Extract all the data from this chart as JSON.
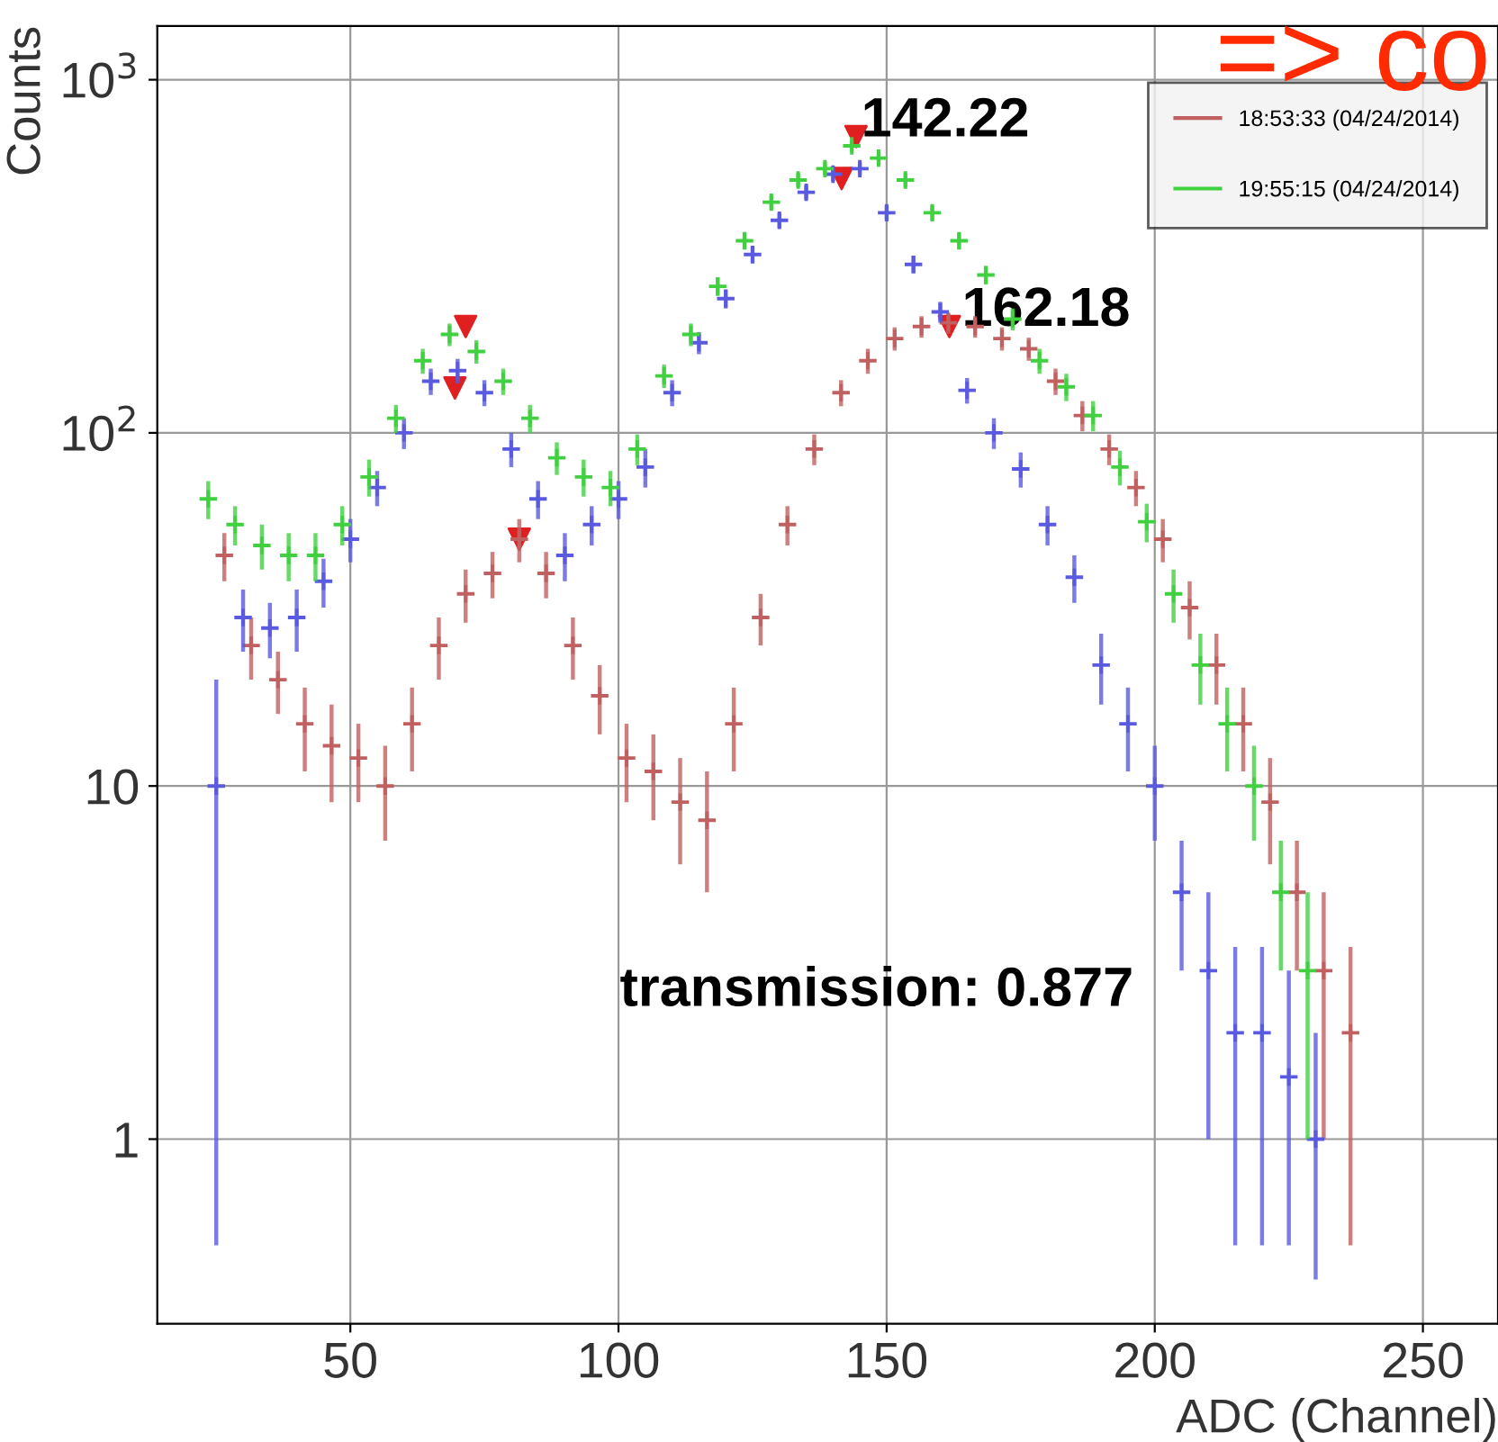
{
  "chart_data": {
    "type": "scatter",
    "xlabel": "ADC (Channel)",
    "ylabel": "Counts",
    "x": [
      25,
      30,
      35,
      40,
      45,
      50,
      55,
      60,
      65,
      70,
      75,
      80,
      85,
      90,
      95,
      100,
      105,
      110,
      115,
      120,
      125,
      130,
      135,
      140,
      145,
      150,
      155,
      160,
      165,
      170,
      175,
      180,
      185,
      190,
      195,
      200,
      205,
      210,
      215,
      220,
      225,
      230
    ],
    "series": [
      {
        "name": "18:53:33 (04/24/2014)",
        "color": "#c06060",
        "marker": "cross",
        "x": [
          26.5,
          31.5,
          36.5,
          41.5,
          46.5,
          51.5,
          56.5,
          61.5,
          66.5,
          71.5,
          76.5,
          81.5,
          86.5,
          91.5,
          96.5,
          101.5,
          106.5,
          111.5,
          116.5,
          121.5,
          126.5,
          131.5,
          136.5,
          141.5,
          146.5,
          151.5,
          156.5,
          161.5,
          166.5,
          171.5,
          176.5,
          181.5,
          186.5,
          191.5,
          196.5,
          201.5,
          206.5,
          211.5,
          216.5,
          221.5,
          226.5,
          231.5,
          236.5
        ],
        "values": [
          45,
          25,
          20,
          15,
          13,
          12,
          10,
          15,
          25,
          35,
          40,
          50,
          40,
          25,
          18,
          12,
          11,
          9,
          8,
          15,
          30,
          55,
          90,
          130,
          160,
          185,
          200,
          205,
          200,
          185,
          173,
          140,
          112,
          90,
          70,
          50,
          32,
          22,
          15,
          9,
          5,
          3,
          2
        ],
        "errors": [
          7,
          5,
          4,
          4,
          4,
          3,
          3,
          4,
          5,
          6,
          6,
          7,
          6,
          5,
          4,
          3,
          3,
          3,
          3,
          4,
          5,
          7,
          9,
          11,
          13,
          14,
          14,
          14,
          14,
          14,
          13,
          12,
          11,
          9,
          8,
          7,
          6,
          5,
          4,
          3,
          2,
          2,
          1.5
        ]
      },
      {
        "color": "#5a5ae0",
        "marker": "cross",
        "values": [
          10,
          30,
          28,
          30,
          38,
          50,
          70,
          100,
          140,
          150,
          130,
          90,
          65,
          45,
          55,
          65,
          80,
          130,
          180,
          240,
          320,
          400,
          480,
          540,
          560,
          420,
          300,
          220,
          132,
          100,
          79,
          55,
          39,
          22,
          15,
          10,
          5,
          3,
          2,
          2,
          1.5,
          1
        ],
        "errors": [
          [
            0.5,
            20
          ],
          6,
          5,
          6,
          6,
          7,
          8,
          10,
          12,
          12,
          11,
          10,
          8,
          7,
          7,
          8,
          10,
          11,
          13,
          15,
          18,
          20,
          22,
          23,
          24,
          20,
          17,
          15,
          11,
          10,
          9,
          7,
          6,
          5,
          4,
          3,
          2,
          2,
          1.5,
          1.5,
          [
            0.5,
            3
          ],
          [
            0.4,
            2
          ]
        ]
      },
      {
        "name": "19:55:15 (04/24/2014)",
        "color": "#40d040",
        "marker": "cross",
        "x": [
          23.5,
          28.5,
          33.5,
          38.5,
          43.5,
          48.5,
          53.5,
          58.5,
          63.5,
          68.5,
          73.5,
          78.5,
          83.5,
          88.5,
          93.5,
          98.5,
          103.5,
          108.5,
          113.5,
          118.5,
          123.5,
          128.5,
          133.5,
          138.5,
          143.5,
          148.5,
          153.5,
          158.5,
          163.5,
          168.5,
          173.5,
          178.5,
          183.5,
          188.5,
          193.5,
          198.5,
          203.5,
          208.5,
          213.5,
          218.5,
          223.5,
          228.5
        ],
        "values": [
          65,
          55,
          48,
          45,
          45,
          55,
          75,
          110,
          160,
          190,
          170,
          140,
          110,
          85,
          75,
          70,
          90,
          145,
          190,
          260,
          350,
          450,
          520,
          560,
          650,
          600,
          520,
          420,
          350,
          280,
          210,
          160,
          135,
          112,
          80,
          56,
          35,
          22,
          15,
          10,
          5,
          3
        ],
        "errors": [
          8,
          7,
          7,
          7,
          7,
          7,
          9,
          10,
          13,
          14,
          13,
          12,
          10,
          9,
          9,
          8,
          9,
          11,
          14,
          16,
          19,
          21,
          23,
          24,
          25,
          24,
          23,
          20,
          19,
          17,
          15,
          13,
          12,
          11,
          9,
          7,
          6,
          5,
          4,
          3,
          2,
          2
        ]
      },
      {
        "color": "#e02020",
        "marker": "triangle",
        "x": [
          71.5,
          69.5,
          81.5,
          141.6,
          144.3,
          161.7
        ],
        "values": [
          200,
          134,
          50,
          525,
          690,
          200
        ]
      }
    ],
    "xlim": [
      14,
      264
    ],
    "xticks": [
      50,
      100,
      150,
      200,
      250
    ],
    "log": true,
    "ylim": [
      0.3,
      1420
    ],
    "yticks": [
      1,
      10,
      {
        "value": 100,
        "label": "10$^{2}$"
      },
      {
        "value": 1000,
        "label": "10$^{3}$"
      }
    ],
    "grid": true,
    "legend": "top right",
    "annotations": [
      "142.22",
      {
        "text": "162.18",
        "x": 162.18,
        "y": 200
      },
      "transmission: 0.877",
      "=> co"
    ]
  }
}
